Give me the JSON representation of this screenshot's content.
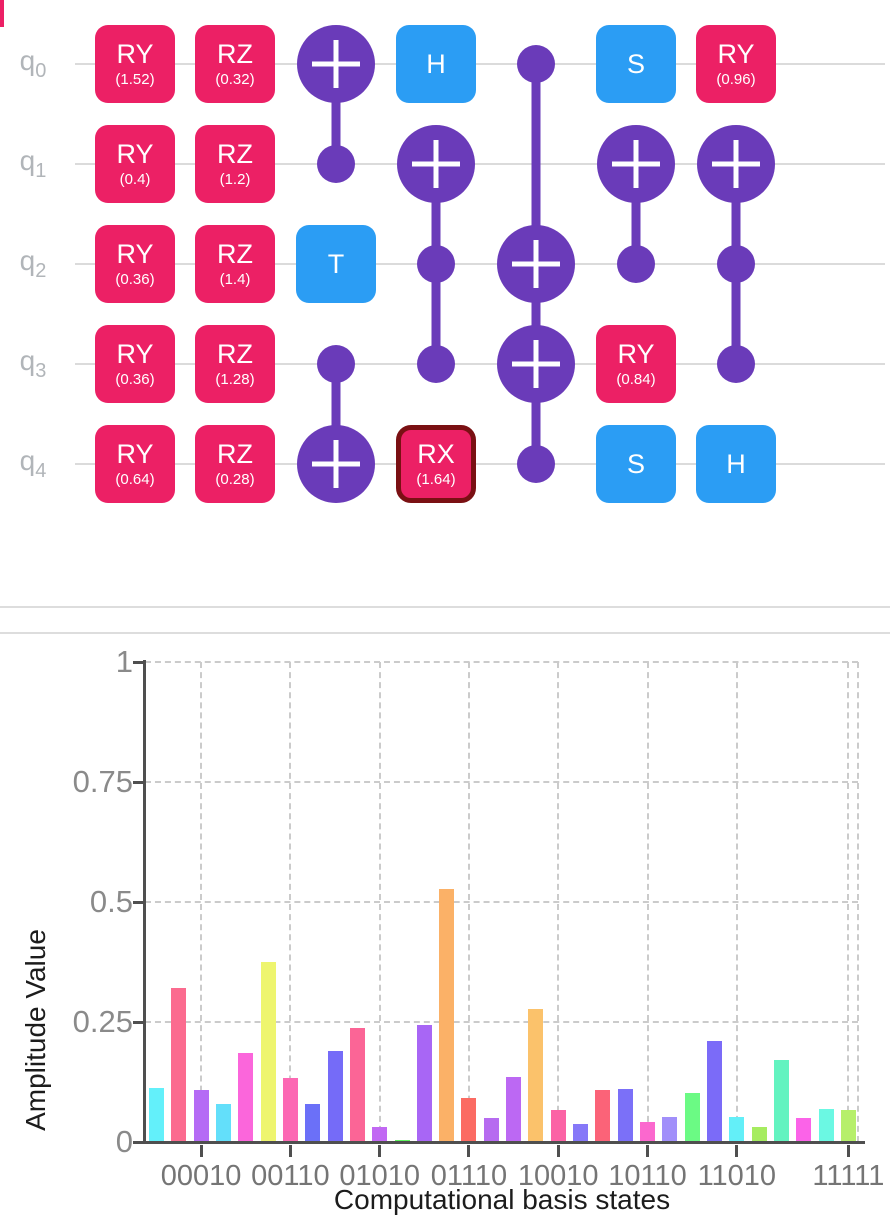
{
  "circuit": {
    "qubit_labels": [
      {
        "base": "q",
        "sub": "0"
      },
      {
        "base": "q",
        "sub": "1"
      },
      {
        "base": "q",
        "sub": "2"
      },
      {
        "base": "q",
        "sub": "3"
      },
      {
        "base": "q",
        "sub": "4"
      }
    ],
    "gates": [
      {
        "row": 0,
        "col": 0,
        "kind": "box",
        "style": "rotation",
        "label": "RY",
        "param": "(1.52)"
      },
      {
        "row": 0,
        "col": 1,
        "kind": "box",
        "style": "rotation",
        "label": "RZ",
        "param": "(0.32)"
      },
      {
        "row": 0,
        "col": 3,
        "kind": "box",
        "style": "phase",
        "label": "H",
        "param": ""
      },
      {
        "row": 0,
        "col": 5,
        "kind": "box",
        "style": "phase",
        "label": "S",
        "param": ""
      },
      {
        "row": 0,
        "col": 6,
        "kind": "box",
        "style": "rotation",
        "label": "RY",
        "param": "(0.96)"
      },
      {
        "row": 1,
        "col": 0,
        "kind": "box",
        "style": "rotation",
        "label": "RY",
        "param": "(0.4)"
      },
      {
        "row": 1,
        "col": 1,
        "kind": "box",
        "style": "rotation",
        "label": "RZ",
        "param": "(1.2)"
      },
      {
        "row": 2,
        "col": 0,
        "kind": "box",
        "style": "rotation",
        "label": "RY",
        "param": "(0.36)"
      },
      {
        "row": 2,
        "col": 1,
        "kind": "box",
        "style": "rotation",
        "label": "RZ",
        "param": "(1.4)"
      },
      {
        "row": 2,
        "col": 2,
        "kind": "box",
        "style": "phase",
        "label": "T",
        "param": ""
      },
      {
        "row": 3,
        "col": 0,
        "kind": "box",
        "style": "rotation",
        "label": "RY",
        "param": "(0.36)"
      },
      {
        "row": 3,
        "col": 1,
        "kind": "box",
        "style": "rotation",
        "label": "RZ",
        "param": "(1.28)"
      },
      {
        "row": 3,
        "col": 5,
        "kind": "box",
        "style": "rotation",
        "label": "RY",
        "param": "(0.84)"
      },
      {
        "row": 4,
        "col": 0,
        "kind": "box",
        "style": "rotation",
        "label": "RY",
        "param": "(0.64)"
      },
      {
        "row": 4,
        "col": 1,
        "kind": "box",
        "style": "rotation",
        "label": "RZ",
        "param": "(0.28)"
      },
      {
        "row": 4,
        "col": 3,
        "kind": "box",
        "style": "rotation",
        "label": "RX",
        "param": "(1.64)",
        "highlighted": true
      },
      {
        "row": 4,
        "col": 5,
        "kind": "box",
        "style": "phase",
        "label": "S",
        "param": ""
      },
      {
        "row": 4,
        "col": 6,
        "kind": "box",
        "style": "phase",
        "label": "H",
        "param": ""
      },
      {
        "row": 0,
        "col": 2,
        "kind": "target"
      },
      {
        "row": 1,
        "col": 2,
        "kind": "control"
      },
      {
        "row": 3,
        "col": 2,
        "kind": "control"
      },
      {
        "row": 4,
        "col": 2,
        "kind": "target"
      },
      {
        "row": 1,
        "col": 3,
        "kind": "target"
      },
      {
        "row": 2,
        "col": 3,
        "kind": "control"
      },
      {
        "row": 3,
        "col": 3,
        "kind": "control"
      },
      {
        "row": 0,
        "col": 4,
        "kind": "control"
      },
      {
        "row": 2,
        "col": 4,
        "kind": "target"
      },
      {
        "row": 3,
        "col": 4,
        "kind": "target"
      },
      {
        "row": 4,
        "col": 4,
        "kind": "control"
      },
      {
        "row": 1,
        "col": 5,
        "kind": "target"
      },
      {
        "row": 2,
        "col": 5,
        "kind": "control"
      },
      {
        "row": 1,
        "col": 6,
        "kind": "target"
      },
      {
        "row": 2,
        "col": 6,
        "kind": "control"
      },
      {
        "row": 3,
        "col": 6,
        "kind": "control"
      }
    ],
    "connectors": [
      {
        "col": 2,
        "from": 0,
        "to": 1
      },
      {
        "col": 2,
        "from": 3,
        "to": 4
      },
      {
        "col": 3,
        "from": 1,
        "to": 3
      },
      {
        "col": 4,
        "from": 0,
        "to": 4
      },
      {
        "col": 5,
        "from": 1,
        "to": 2
      },
      {
        "col": 6,
        "from": 1,
        "to": 3
      }
    ],
    "colors": {
      "rotation_gate": "#ec2065",
      "clifford_gate": "#2b9df4",
      "cnot": "#6a3bb9",
      "highlight_border": "#7a1013",
      "wire": "#dbdbdb",
      "qubit_label": "#b1b5b9"
    }
  },
  "chart_data": {
    "type": "bar",
    "title": "",
    "xlabel": "Computational basis states",
    "ylabel": "Amplitude Value",
    "ylim": [
      0,
      1
    ],
    "grid": "dashed",
    "legend": "none",
    "yticks": [
      0,
      0.25,
      0.5,
      0.75,
      1
    ],
    "ytick_labels": [
      "0",
      "0.25",
      "0.5",
      "0.75",
      "1"
    ],
    "xtick_indices": [
      2,
      6,
      10,
      14,
      18,
      22,
      26,
      31
    ],
    "xtick_labels": [
      "00010",
      "00110",
      "01010",
      "01110",
      "10010",
      "10110",
      "11010",
      "11111"
    ],
    "categories": [
      "00000",
      "00001",
      "00010",
      "00011",
      "00100",
      "00101",
      "00110",
      "00111",
      "01000",
      "01001",
      "01010",
      "01011",
      "01100",
      "01101",
      "01110",
      "01111",
      "10000",
      "10001",
      "10010",
      "10011",
      "10100",
      "10101",
      "10110",
      "10111",
      "11000",
      "11001",
      "11010",
      "11011",
      "11100",
      "11101",
      "11110",
      "11111"
    ],
    "values": [
      0.113,
      0.32,
      0.108,
      0.079,
      0.185,
      0.375,
      0.133,
      0.079,
      0.19,
      0.238,
      0.031,
      0.005,
      0.244,
      0.527,
      0.092,
      0.051,
      0.135,
      0.277,
      0.067,
      0.038,
      0.108,
      0.11,
      0.042,
      0.052,
      0.102,
      0.21,
      0.052,
      0.031,
      0.171,
      0.05,
      0.069,
      0.067
    ],
    "bar_colors": [
      "#63F0FA",
      "#FB6B8F",
      "#B56BF5",
      "#63DFFA",
      "#FB66DB",
      "#EEF56E",
      "#FC68B3",
      "#6B70F8",
      "#756BF8",
      "#FB6596",
      "#C168F3",
      "#5FF55F",
      "#A866F5",
      "#FBB167",
      "#FB6B63",
      "#B66BF0",
      "#BC68F3",
      "#FBC26B",
      "#FB63A5",
      "#8678F8",
      "#FB6378",
      "#7B70F8",
      "#FB68CE",
      "#A18FFA",
      "#6BFA84",
      "#7B6BF8",
      "#63EFF8",
      "#A6EC60",
      "#63F3C0",
      "#FB63E8",
      "#6BF8E3",
      "#B6EF6B"
    ],
    "axis_color": "#4f4f4f",
    "grid_color": "#cbcbcb"
  }
}
